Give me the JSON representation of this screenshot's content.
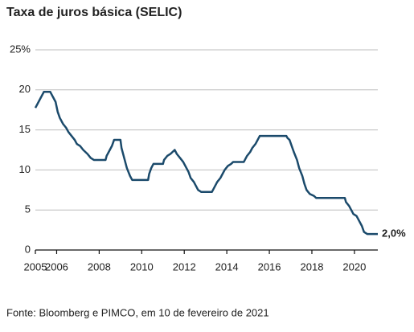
{
  "chart_data": {
    "type": "line",
    "title": "Taxa de juros básica (SELIC)",
    "source": "Fonte: Bloomberg e PIMCO, em 10 de fevereiro de 2021",
    "x": [
      2005.0,
      2005.1,
      2005.2,
      2005.3,
      2005.4,
      2005.7,
      2005.75,
      2005.85,
      2005.95,
      2006.05,
      2006.15,
      2006.3,
      2006.45,
      2006.55,
      2006.7,
      2006.85,
      2006.95,
      2007.1,
      2007.25,
      2007.45,
      2007.6,
      2007.75,
      2008.3,
      2008.35,
      2008.45,
      2008.6,
      2008.7,
      2009.0,
      2009.05,
      2009.2,
      2009.3,
      2009.45,
      2009.55,
      2010.3,
      2010.35,
      2010.45,
      2010.55,
      2011.0,
      2011.05,
      2011.2,
      2011.35,
      2011.55,
      2011.65,
      2011.8,
      2011.95,
      2012.05,
      2012.2,
      2012.3,
      2012.45,
      2012.55,
      2012.65,
      2012.8,
      2013.3,
      2013.35,
      2013.45,
      2013.55,
      2013.7,
      2013.8,
      2013.9,
      2014.05,
      2014.2,
      2014.3,
      2014.8,
      2014.85,
      2014.95,
      2015.1,
      2015.2,
      2015.35,
      2015.45,
      2015.55,
      2016.8,
      2016.85,
      2016.95,
      2017.05,
      2017.15,
      2017.3,
      2017.4,
      2017.55,
      2017.65,
      2017.75,
      2017.9,
      2018.1,
      2018.2,
      2019.55,
      2019.6,
      2019.75,
      2019.85,
      2019.95,
      2020.1,
      2020.2,
      2020.35,
      2020.45,
      2020.6,
      2021.1
    ],
    "series": [
      {
        "color": "#1b4a6b",
        "values": [
          17.75,
          18.25,
          18.75,
          19.25,
          19.75,
          19.75,
          19.5,
          19.0,
          18.5,
          17.25,
          16.5,
          15.75,
          15.25,
          14.75,
          14.25,
          13.75,
          13.25,
          13.0,
          12.5,
          12.0,
          11.5,
          11.25,
          11.25,
          11.75,
          12.25,
          13.0,
          13.75,
          13.75,
          12.75,
          11.25,
          10.25,
          9.25,
          8.75,
          8.75,
          9.5,
          10.25,
          10.75,
          10.75,
          11.25,
          11.75,
          12.0,
          12.5,
          12.0,
          11.5,
          11.0,
          10.5,
          9.75,
          9.0,
          8.5,
          8.0,
          7.5,
          7.25,
          7.25,
          7.5,
          8.0,
          8.5,
          9.0,
          9.5,
          10.0,
          10.5,
          10.75,
          11.0,
          11.0,
          11.25,
          11.75,
          12.25,
          12.75,
          13.25,
          13.75,
          14.25,
          14.25,
          14.0,
          13.75,
          13.0,
          12.25,
          11.25,
          10.25,
          9.25,
          8.25,
          7.5,
          7.0,
          6.75,
          6.5,
          6.5,
          6.0,
          5.5,
          5.0,
          4.5,
          4.25,
          3.75,
          3.0,
          2.25,
          2.0,
          2.0
        ],
        "value_labels": [
          null,
          null,
          null,
          null,
          null,
          null,
          null,
          null,
          null,
          null,
          null,
          null,
          null,
          null,
          null,
          null,
          null,
          null,
          null,
          null,
          null,
          null,
          null,
          null,
          null,
          null,
          null,
          null,
          null,
          null,
          null,
          null,
          null,
          null,
          null,
          null,
          null,
          null,
          null,
          null,
          null,
          null,
          null,
          null,
          null,
          null,
          null,
          null,
          null,
          null,
          null,
          null,
          null,
          null,
          null,
          null,
          null,
          null,
          null,
          null,
          null,
          null,
          null,
          null,
          null,
          null,
          null,
          null,
          null,
          null,
          null,
          null,
          null,
          null,
          null,
          null,
          null,
          null,
          null,
          null,
          null,
          null,
          null,
          null,
          null,
          null,
          null,
          null,
          null,
          null,
          null,
          null,
          null,
          "2,0%"
        ]
      }
    ],
    "xlim": [
      2005,
      2021.1
    ],
    "xticks": [
      2005,
      2006,
      2008,
      2010,
      2012,
      2014,
      2016,
      2018,
      2020
    ],
    "ylim": [
      0,
      25
    ],
    "yticks": [
      0,
      5,
      10,
      15,
      20,
      {
        "value": 25,
        "label": "25%"
      }
    ],
    "grid": true
  }
}
